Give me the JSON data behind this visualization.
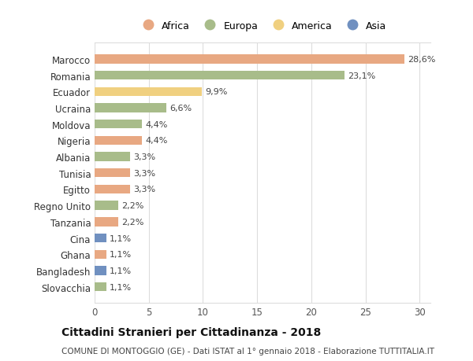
{
  "categories": [
    "Marocco",
    "Romania",
    "Ecuador",
    "Ucraina",
    "Moldova",
    "Nigeria",
    "Albania",
    "Tunisia",
    "Egitto",
    "Regno Unito",
    "Tanzania",
    "Cina",
    "Ghana",
    "Bangladesh",
    "Slovacchia"
  ],
  "values": [
    28.6,
    23.1,
    9.9,
    6.6,
    4.4,
    4.4,
    3.3,
    3.3,
    3.3,
    2.2,
    2.2,
    1.1,
    1.1,
    1.1,
    1.1
  ],
  "labels": [
    "28,6%",
    "23,1%",
    "9,9%",
    "6,6%",
    "4,4%",
    "4,4%",
    "3,3%",
    "3,3%",
    "3,3%",
    "2,2%",
    "2,2%",
    "1,1%",
    "1,1%",
    "1,1%",
    "1,1%"
  ],
  "continents": [
    "Africa",
    "Europa",
    "America",
    "Europa",
    "Europa",
    "Africa",
    "Europa",
    "Africa",
    "Africa",
    "Europa",
    "Africa",
    "Asia",
    "Africa",
    "Asia",
    "Europa"
  ],
  "continent_colors": {
    "Africa": "#E8A882",
    "Europa": "#A8BC8A",
    "America": "#F0D080",
    "Asia": "#7090C0"
  },
  "legend_order": [
    "Africa",
    "Europa",
    "America",
    "Asia"
  ],
  "title": "Cittadini Stranieri per Cittadinanza - 2018",
  "subtitle": "COMUNE DI MONTOGGIO (GE) - Dati ISTAT al 1° gennaio 2018 - Elaborazione TUTTITALIA.IT",
  "xlim": [
    0,
    31
  ],
  "xticks": [
    0,
    5,
    10,
    15,
    20,
    25,
    30
  ],
  "background_color": "#ffffff",
  "grid_color": "#dddddd",
  "bar_height": 0.55,
  "label_fontsize": 8.0,
  "ytick_fontsize": 8.5,
  "xtick_fontsize": 8.5,
  "title_fontsize": 10.0,
  "subtitle_fontsize": 7.5
}
